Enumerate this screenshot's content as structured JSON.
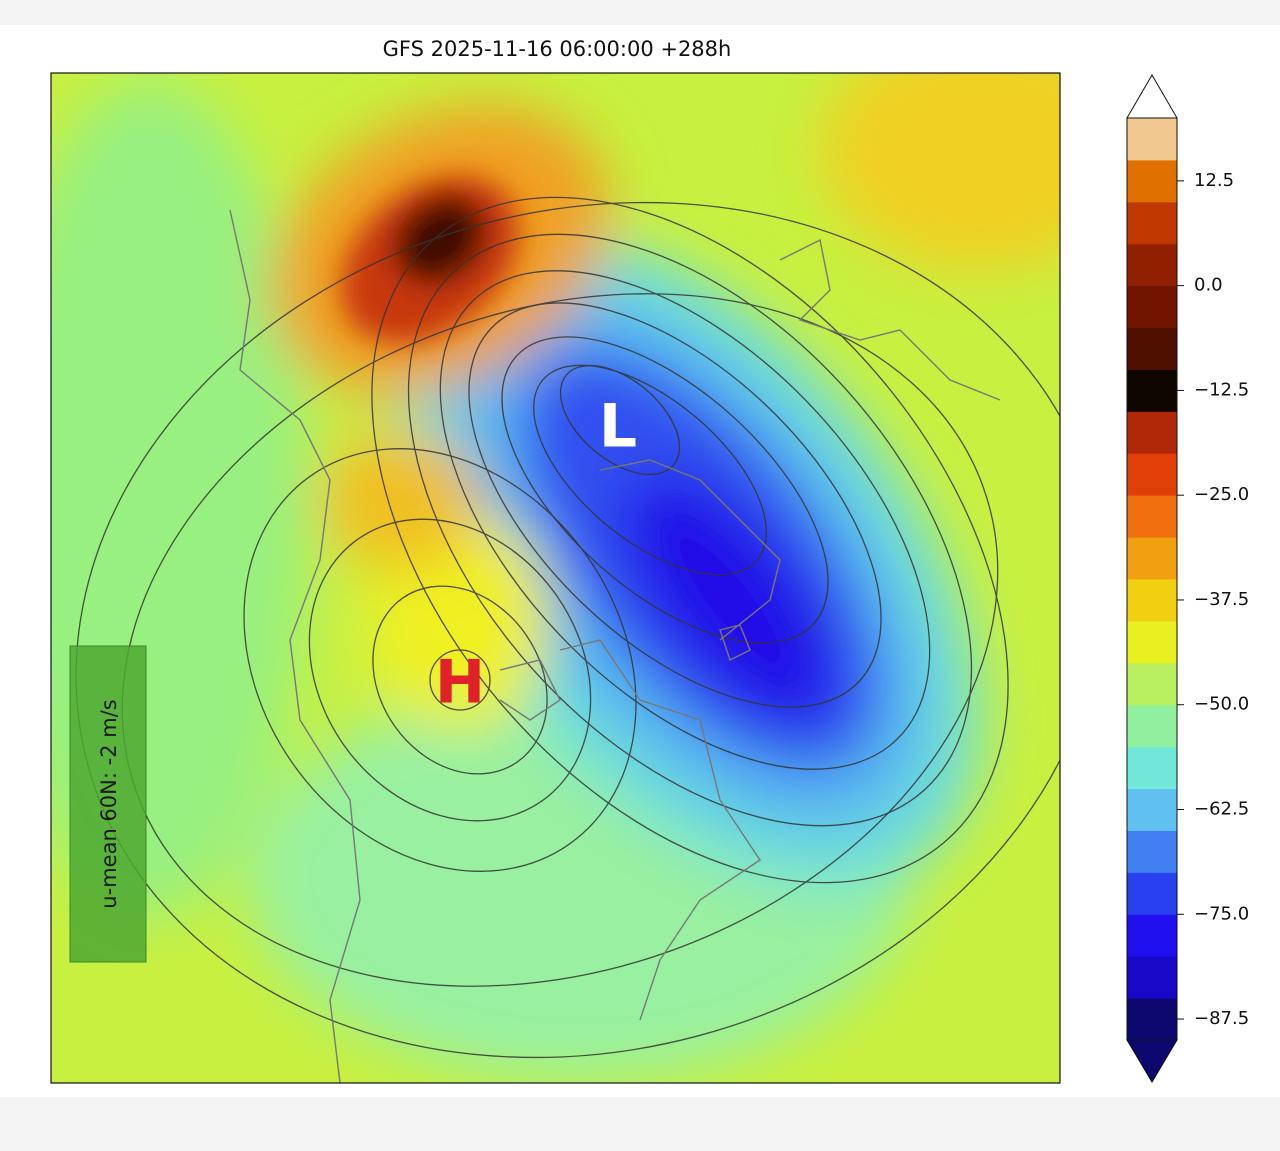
{
  "title": "GFS 2025-11-16 06:00:00 +288h",
  "map": {
    "centers": [
      {
        "label": "L",
        "color": "#ffffff"
      },
      {
        "label": "H",
        "color": "#e0202a"
      }
    ],
    "annotation": "u-mean 60N: -2 m/s"
  },
  "colorbar": {
    "lim": [
      -90,
      20
    ],
    "ticks": [
      {
        "value": 12.5,
        "label": "12.5"
      },
      {
        "value": 0,
        "label": "0.0"
      },
      {
        "value": -12.5,
        "label": "−12.5"
      },
      {
        "value": -25,
        "label": "−25.0"
      },
      {
        "value": -37.5,
        "label": "−37.5"
      },
      {
        "value": -50,
        "label": "−50.0"
      },
      {
        "value": -62.5,
        "label": "−62.5"
      },
      {
        "value": -75,
        "label": "−75.0"
      },
      {
        "value": -87.5,
        "label": "−87.5"
      }
    ],
    "colors": [
      "#0c0870",
      "#1808c8",
      "#2010f0",
      "#2840f0",
      "#4080f0",
      "#60c0f0",
      "#70e8d8",
      "#90f0a0",
      "#b8f060",
      "#e8f020",
      "#f0d010",
      "#f0a010",
      "#f07010",
      "#e04008",
      "#b02808",
      "#100600",
      "#501000",
      "#701400",
      "#902000",
      "#c03800",
      "#e07000",
      "#f0c890"
    ],
    "over_color": "#ffffff",
    "under_color": "#0c0870"
  }
}
